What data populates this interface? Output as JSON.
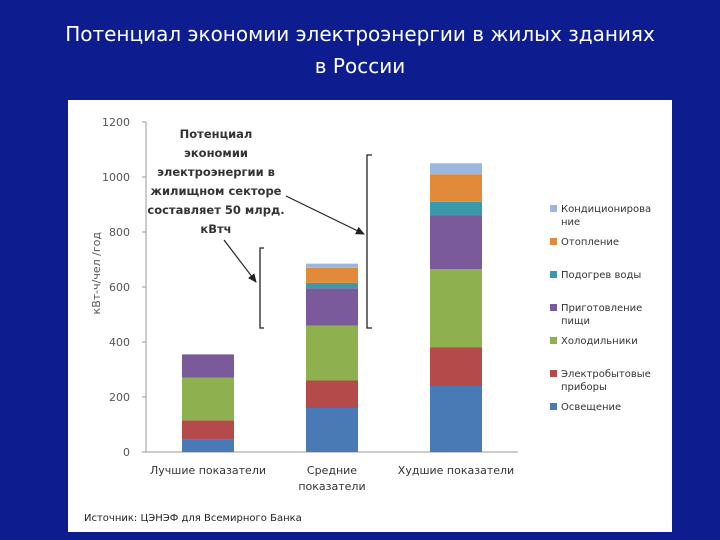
{
  "slide": {
    "title_line1": "Потенциал экономии электроэнергии в жилых зданиях",
    "title_line2": "в России"
  },
  "annotation": {
    "lines": [
      "Потенциал",
      "экономии",
      "электроэнергии в",
      "жилищном секторе",
      "составляет 50 млрд.",
      "кВтч"
    ]
  },
  "source": "Источник: ЦЭНЭФ для Всемирного Банка",
  "colors": {
    "Освещение": "#4a7ab5",
    "Электробытовые приборы": "#b54a4a",
    "Холодильники": "#8fb04e",
    "Приготовление пищи": "#7a5a9a",
    "Подогрев воды": "#3a9aaa",
    "Отопление": "#e08a3a",
    "Кондиционирование": "#9ab8de"
  },
  "chart_data": {
    "type": "bar",
    "stacked": true,
    "categories": [
      [
        "Лучшие показатели"
      ],
      [
        "Средние",
        "показатели"
      ],
      [
        "Худшие показатели"
      ]
    ],
    "ylabel": "кВт-ч/чел /год",
    "xlabel": "",
    "title": "",
    "ylim": [
      0,
      1200
    ],
    "yticks": [
      0,
      200,
      400,
      600,
      800,
      1000,
      1200
    ],
    "grid": false,
    "legend_position": "right",
    "series": [
      {
        "name": "Освещение",
        "legend_lines": [
          "Освещение"
        ],
        "values": [
          45,
          160,
          240
        ]
      },
      {
        "name": "Электробытовые приборы",
        "legend_lines": [
          "Электробытовые",
          "приборы"
        ],
        "values": [
          70,
          100,
          140
        ]
      },
      {
        "name": "Холодильники",
        "legend_lines": [
          "Холодильники"
        ],
        "values": [
          155,
          200,
          285
        ]
      },
      {
        "name": "Приготовление пищи",
        "legend_lines": [
          "Приготовление",
          "пищи"
        ],
        "values": [
          85,
          135,
          195
        ]
      },
      {
        "name": "Подогрев воды",
        "legend_lines": [
          "Подогрев воды"
        ],
        "values": [
          0,
          20,
          50
        ]
      },
      {
        "name": "Отопление",
        "legend_lines": [
          "Отопление"
        ],
        "values": [
          0,
          55,
          100
        ]
      },
      {
        "name": "Кондиционирование",
        "legend_lines": [
          "Кондиционирова",
          "ние"
        ],
        "values": [
          0,
          15,
          40
        ]
      }
    ]
  }
}
